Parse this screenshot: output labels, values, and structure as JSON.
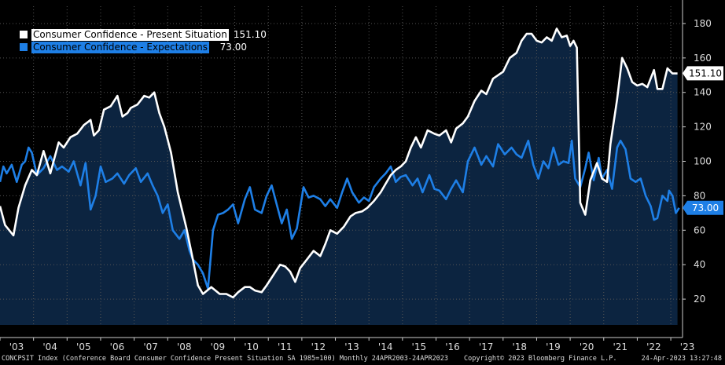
{
  "chart_data": {
    "type": "line",
    "ticker": "CONCPSIT Index",
    "x_ticks": [
      "'03",
      "'04",
      "'05",
      "'06",
      "'07",
      "'08",
      "'09",
      "'10",
      "'11",
      "'12",
      "'13",
      "'14",
      "'15",
      "'16",
      "'17",
      "'18",
      "'19",
      "'20",
      "'21",
      "'22",
      "'23"
    ],
    "y_ticks": [
      20,
      40,
      60,
      80,
      100,
      120,
      140,
      160,
      180
    ],
    "ylim": [
      5,
      190
    ],
    "xlim": [
      2003.0,
      2023.35
    ],
    "series": [
      {
        "name": "Consumer Confidence - Present Situation",
        "color": "#ffffff",
        "last_value": "151.10",
        "points": [
          [
            2003.0,
            74
          ],
          [
            2003.15,
            63
          ],
          [
            2003.4,
            57
          ],
          [
            2003.55,
            73
          ],
          [
            2003.75,
            86
          ],
          [
            2003.95,
            95
          ],
          [
            2004.1,
            92
          ],
          [
            2004.3,
            106
          ],
          [
            2004.5,
            93
          ],
          [
            2004.75,
            111
          ],
          [
            2004.9,
            108
          ],
          [
            2005.1,
            114
          ],
          [
            2005.3,
            116
          ],
          [
            2005.5,
            121
          ],
          [
            2005.7,
            124
          ],
          [
            2005.8,
            115
          ],
          [
            2005.95,
            118
          ],
          [
            2006.1,
            130
          ],
          [
            2006.3,
            132
          ],
          [
            2006.5,
            138
          ],
          [
            2006.65,
            126
          ],
          [
            2006.8,
            128
          ],
          [
            2006.9,
            131
          ],
          [
            2007.1,
            133
          ],
          [
            2007.3,
            138
          ],
          [
            2007.45,
            137
          ],
          [
            2007.6,
            140
          ],
          [
            2007.75,
            128
          ],
          [
            2007.9,
            120
          ],
          [
            2008.1,
            105
          ],
          [
            2008.3,
            82
          ],
          [
            2008.55,
            62
          ],
          [
            2008.75,
            43
          ],
          [
            2008.9,
            28
          ],
          [
            2009.05,
            23
          ],
          [
            2009.3,
            27
          ],
          [
            2009.55,
            23
          ],
          [
            2009.75,
            23
          ],
          [
            2009.95,
            21
          ],
          [
            2010.1,
            24
          ],
          [
            2010.3,
            27
          ],
          [
            2010.45,
            27
          ],
          [
            2010.6,
            25
          ],
          [
            2010.8,
            24
          ],
          [
            2010.95,
            28
          ],
          [
            2011.15,
            34
          ],
          [
            2011.35,
            40
          ],
          [
            2011.5,
            39
          ],
          [
            2011.65,
            36
          ],
          [
            2011.8,
            30
          ],
          [
            2011.95,
            38
          ],
          [
            2012.15,
            43
          ],
          [
            2012.35,
            48
          ],
          [
            2012.55,
            45
          ],
          [
            2012.7,
            52
          ],
          [
            2012.85,
            60
          ],
          [
            2013.05,
            58
          ],
          [
            2013.25,
            62
          ],
          [
            2013.45,
            68
          ],
          [
            2013.6,
            70
          ],
          [
            2013.8,
            71
          ],
          [
            2013.95,
            73
          ],
          [
            2014.15,
            77
          ],
          [
            2014.35,
            82
          ],
          [
            2014.5,
            87
          ],
          [
            2014.65,
            92
          ],
          [
            2014.8,
            95
          ],
          [
            2014.95,
            97
          ],
          [
            2015.1,
            100
          ],
          [
            2015.25,
            108
          ],
          [
            2015.4,
            114
          ],
          [
            2015.55,
            108
          ],
          [
            2015.75,
            118
          ],
          [
            2015.95,
            116
          ],
          [
            2016.1,
            115
          ],
          [
            2016.3,
            118
          ],
          [
            2016.45,
            111
          ],
          [
            2016.6,
            119
          ],
          [
            2016.8,
            122
          ],
          [
            2016.95,
            126
          ],
          [
            2017.15,
            135
          ],
          [
            2017.35,
            141
          ],
          [
            2017.5,
            139
          ],
          [
            2017.7,
            148
          ],
          [
            2017.85,
            150
          ],
          [
            2018.0,
            152
          ],
          [
            2018.2,
            160
          ],
          [
            2018.4,
            163
          ],
          [
            2018.55,
            170
          ],
          [
            2018.7,
            174
          ],
          [
            2018.85,
            174
          ],
          [
            2019.0,
            170
          ],
          [
            2019.15,
            169
          ],
          [
            2019.3,
            172
          ],
          [
            2019.45,
            170
          ],
          [
            2019.6,
            177
          ],
          [
            2019.75,
            172
          ],
          [
            2019.9,
            173
          ],
          [
            2020.0,
            167
          ],
          [
            2020.1,
            170
          ],
          [
            2020.2,
            166
          ],
          [
            2020.3,
            76
          ],
          [
            2020.45,
            69
          ],
          [
            2020.6,
            89
          ],
          [
            2020.8,
            99
          ],
          [
            2020.95,
            90
          ],
          [
            2021.1,
            88
          ],
          [
            2021.2,
            110
          ],
          [
            2021.4,
            136
          ],
          [
            2021.55,
            160
          ],
          [
            2021.7,
            154
          ],
          [
            2021.85,
            146
          ],
          [
            2022.0,
            144
          ],
          [
            2022.15,
            145
          ],
          [
            2022.3,
            143
          ],
          [
            2022.5,
            153
          ],
          [
            2022.6,
            142
          ],
          [
            2022.75,
            142
          ],
          [
            2022.9,
            154
          ],
          [
            2023.05,
            151
          ],
          [
            2023.2,
            151
          ]
        ]
      },
      {
        "name": "Consumer Confidence - Expectations",
        "color": "#1e7fe6",
        "last_value": "73.00",
        "points": [
          [
            2003.0,
            88
          ],
          [
            2003.1,
            97
          ],
          [
            2003.2,
            93
          ],
          [
            2003.35,
            98
          ],
          [
            2003.5,
            88
          ],
          [
            2003.65,
            98
          ],
          [
            2003.75,
            100
          ],
          [
            2003.85,
            108
          ],
          [
            2003.95,
            105
          ],
          [
            2004.1,
            92
          ],
          [
            2004.3,
            96
          ],
          [
            2004.5,
            103
          ],
          [
            2004.7,
            95
          ],
          [
            2004.85,
            97
          ],
          [
            2005.05,
            94
          ],
          [
            2005.2,
            100
          ],
          [
            2005.4,
            86
          ],
          [
            2005.55,
            99
          ],
          [
            2005.7,
            72
          ],
          [
            2005.85,
            80
          ],
          [
            2006.0,
            97
          ],
          [
            2006.15,
            88
          ],
          [
            2006.35,
            90
          ],
          [
            2006.5,
            93
          ],
          [
            2006.7,
            87
          ],
          [
            2006.85,
            92
          ],
          [
            2007.05,
            96
          ],
          [
            2007.2,
            88
          ],
          [
            2007.4,
            93
          ],
          [
            2007.55,
            86
          ],
          [
            2007.7,
            80
          ],
          [
            2007.85,
            70
          ],
          [
            2008.0,
            75
          ],
          [
            2008.15,
            60
          ],
          [
            2008.35,
            55
          ],
          [
            2008.5,
            60
          ],
          [
            2008.65,
            48
          ],
          [
            2008.75,
            43
          ],
          [
            2008.9,
            40
          ],
          [
            2009.05,
            35
          ],
          [
            2009.2,
            26
          ],
          [
            2009.35,
            60
          ],
          [
            2009.5,
            69
          ],
          [
            2009.65,
            70
          ],
          [
            2009.8,
            72
          ],
          [
            2009.95,
            75
          ],
          [
            2010.1,
            64
          ],
          [
            2010.3,
            78
          ],
          [
            2010.45,
            85
          ],
          [
            2010.6,
            72
          ],
          [
            2010.8,
            70
          ],
          [
            2010.95,
            80
          ],
          [
            2011.1,
            86
          ],
          [
            2011.25,
            75
          ],
          [
            2011.4,
            64
          ],
          [
            2011.55,
            72
          ],
          [
            2011.7,
            55
          ],
          [
            2011.85,
            61
          ],
          [
            2012.05,
            85
          ],
          [
            2012.2,
            79
          ],
          [
            2012.35,
            80
          ],
          [
            2012.55,
            78
          ],
          [
            2012.7,
            74
          ],
          [
            2012.85,
            78
          ],
          [
            2013.05,
            73
          ],
          [
            2013.2,
            82
          ],
          [
            2013.35,
            90
          ],
          [
            2013.5,
            82
          ],
          [
            2013.7,
            76
          ],
          [
            2013.85,
            79
          ],
          [
            2014.0,
            77
          ],
          [
            2014.15,
            85
          ],
          [
            2014.35,
            90
          ],
          [
            2014.5,
            93
          ],
          [
            2014.65,
            97
          ],
          [
            2014.8,
            88
          ],
          [
            2014.95,
            91
          ],
          [
            2015.1,
            92
          ],
          [
            2015.3,
            86
          ],
          [
            2015.45,
            90
          ],
          [
            2015.6,
            82
          ],
          [
            2015.8,
            92
          ],
          [
            2015.95,
            84
          ],
          [
            2016.1,
            83
          ],
          [
            2016.3,
            78
          ],
          [
            2016.45,
            84
          ],
          [
            2016.6,
            89
          ],
          [
            2016.8,
            82
          ],
          [
            2016.95,
            100
          ],
          [
            2017.15,
            108
          ],
          [
            2017.35,
            98
          ],
          [
            2017.5,
            103
          ],
          [
            2017.7,
            97
          ],
          [
            2017.85,
            110
          ],
          [
            2018.05,
            104
          ],
          [
            2018.25,
            108
          ],
          [
            2018.4,
            104
          ],
          [
            2018.55,
            102
          ],
          [
            2018.75,
            112
          ],
          [
            2018.9,
            98
          ],
          [
            2019.05,
            90
          ],
          [
            2019.2,
            100
          ],
          [
            2019.35,
            96
          ],
          [
            2019.5,
            108
          ],
          [
            2019.65,
            98
          ],
          [
            2019.8,
            100
          ],
          [
            2019.95,
            99
          ],
          [
            2020.05,
            112
          ],
          [
            2020.15,
            90
          ],
          [
            2020.3,
            85
          ],
          [
            2020.45,
            96
          ],
          [
            2020.55,
            105
          ],
          [
            2020.7,
            89
          ],
          [
            2020.85,
            102
          ],
          [
            2020.95,
            90
          ],
          [
            2021.1,
            95
          ],
          [
            2021.25,
            84
          ],
          [
            2021.4,
            108
          ],
          [
            2021.5,
            112
          ],
          [
            2021.65,
            107
          ],
          [
            2021.8,
            90
          ],
          [
            2021.95,
            88
          ],
          [
            2022.1,
            90
          ],
          [
            2022.25,
            80
          ],
          [
            2022.4,
            74
          ],
          [
            2022.5,
            66
          ],
          [
            2022.6,
            67
          ],
          [
            2022.75,
            80
          ],
          [
            2022.9,
            77
          ],
          [
            2022.95,
            83
          ],
          [
            2023.05,
            80
          ],
          [
            2023.15,
            70
          ],
          [
            2023.25,
            73
          ]
        ]
      }
    ],
    "last_labels": [
      "151.10",
      "73.00"
    ]
  },
  "legend": {
    "items": [
      {
        "label": "Consumer Confidence - Present Situation",
        "value": "151.10"
      },
      {
        "label": "Consumer Confidence - Expectations",
        "value": "73.00"
      }
    ]
  },
  "footer": {
    "description": "CONCPSIT Index (Conference Board Consumer Confidence Present Situation SA 1985=100)  Monthly 24APR2003-24APR2023",
    "copyright": "Copyright© 2023 Bloomberg Finance L.P.",
    "timestamp": "24-Apr-2023 13:27:48"
  },
  "colors": {
    "background": "#000000",
    "area_fill": "#0c2440",
    "present": "#ffffff",
    "expectations": "#1e7fe6"
  }
}
